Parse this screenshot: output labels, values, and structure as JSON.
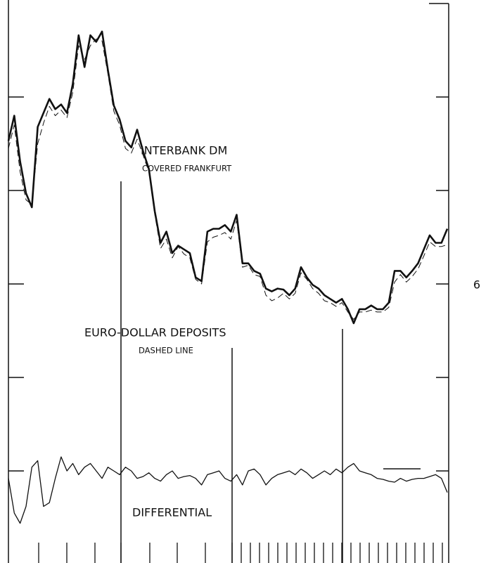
{
  "chart_data": {
    "type": "line",
    "series": [
      {
        "name": "INTERBANK DM",
        "note": "COVERED FRANKFURT",
        "color": "#111111",
        "style": "solid",
        "values": [
          7.53,
          7.8,
          7.31,
          6.97,
          6.82,
          7.68,
          7.83,
          7.98,
          7.87,
          7.92,
          7.83,
          8.14,
          8.66,
          8.32,
          8.66,
          8.59,
          8.7,
          8.29,
          7.91,
          7.76,
          7.53,
          7.46,
          7.65,
          7.42,
          7.23,
          6.78,
          6.44,
          6.56,
          6.33,
          6.41,
          6.37,
          6.33,
          6.07,
          6.03,
          6.56,
          6.59,
          6.59,
          6.63,
          6.56,
          6.74,
          6.22,
          6.22,
          6.14,
          6.11,
          5.95,
          5.92,
          5.95,
          5.94,
          5.88,
          5.95,
          6.18,
          6.07,
          5.99,
          5.95,
          5.88,
          5.84,
          5.8,
          5.84,
          5.73,
          5.58,
          5.73,
          5.73,
          5.77,
          5.73,
          5.73,
          5.8,
          6.14,
          6.14,
          6.07,
          6.14,
          6.22,
          6.37,
          6.52,
          6.44,
          6.44,
          6.59
        ]
      },
      {
        "name": "EURO-DOLLAR DEPOSITS",
        "note": "DASHED LINE",
        "color": "#111111",
        "style": "dashed",
        "values": [
          7.45,
          7.7,
          7.2,
          6.9,
          6.85,
          7.5,
          7.72,
          7.9,
          7.8,
          7.86,
          7.78,
          8.05,
          8.55,
          8.4,
          8.55,
          8.62,
          8.6,
          8.25,
          7.85,
          7.7,
          7.45,
          7.4,
          7.55,
          7.38,
          7.2,
          6.75,
          6.38,
          6.48,
          6.28,
          6.4,
          6.32,
          6.28,
          6.05,
          6.0,
          6.45,
          6.5,
          6.52,
          6.55,
          6.48,
          6.68,
          6.18,
          6.2,
          6.1,
          6.08,
          5.88,
          5.82,
          5.85,
          5.9,
          5.84,
          5.9,
          6.12,
          6.05,
          5.95,
          5.9,
          5.82,
          5.8,
          5.76,
          5.8,
          5.7,
          5.62,
          5.7,
          5.7,
          5.72,
          5.7,
          5.7,
          5.75,
          6.02,
          6.1,
          6.02,
          6.08,
          6.16,
          6.3,
          6.45,
          6.4,
          6.4,
          6.42
        ]
      },
      {
        "name": "DIFFERENTIAL",
        "color": "#111111",
        "style": "thin",
        "values": [
          3.92,
          3.55,
          3.44,
          3.62,
          4.04,
          4.11,
          3.62,
          3.66,
          3.92,
          4.15,
          4.0,
          4.08,
          3.96,
          4.04,
          4.08,
          4.0,
          3.92,
          4.04,
          4.0,
          3.96,
          4.04,
          4.0,
          3.92,
          3.94,
          3.98,
          3.92,
          3.89,
          3.96,
          4.0,
          3.92,
          3.94,
          3.95,
          3.92,
          3.85,
          3.96,
          3.98,
          4.0,
          3.92,
          3.89,
          3.96,
          3.85,
          4.0,
          4.02,
          3.96,
          3.85,
          3.92,
          3.96,
          3.98,
          4.0,
          3.96,
          4.02,
          3.98,
          3.92,
          3.96,
          4.0,
          3.96,
          4.02,
          3.98,
          4.04,
          4.08,
          4.0,
          3.98,
          3.96,
          3.92,
          3.91,
          3.89,
          3.88,
          3.92,
          3.89,
          3.91,
          3.92,
          3.92,
          3.94,
          3.96,
          3.92,
          3.77
        ]
      }
    ],
    "ylim": [
      3,
      9
    ],
    "yticks": [
      6
    ],
    "minor_yticks": [
      4,
      5,
      7,
      8
    ]
  }
}
